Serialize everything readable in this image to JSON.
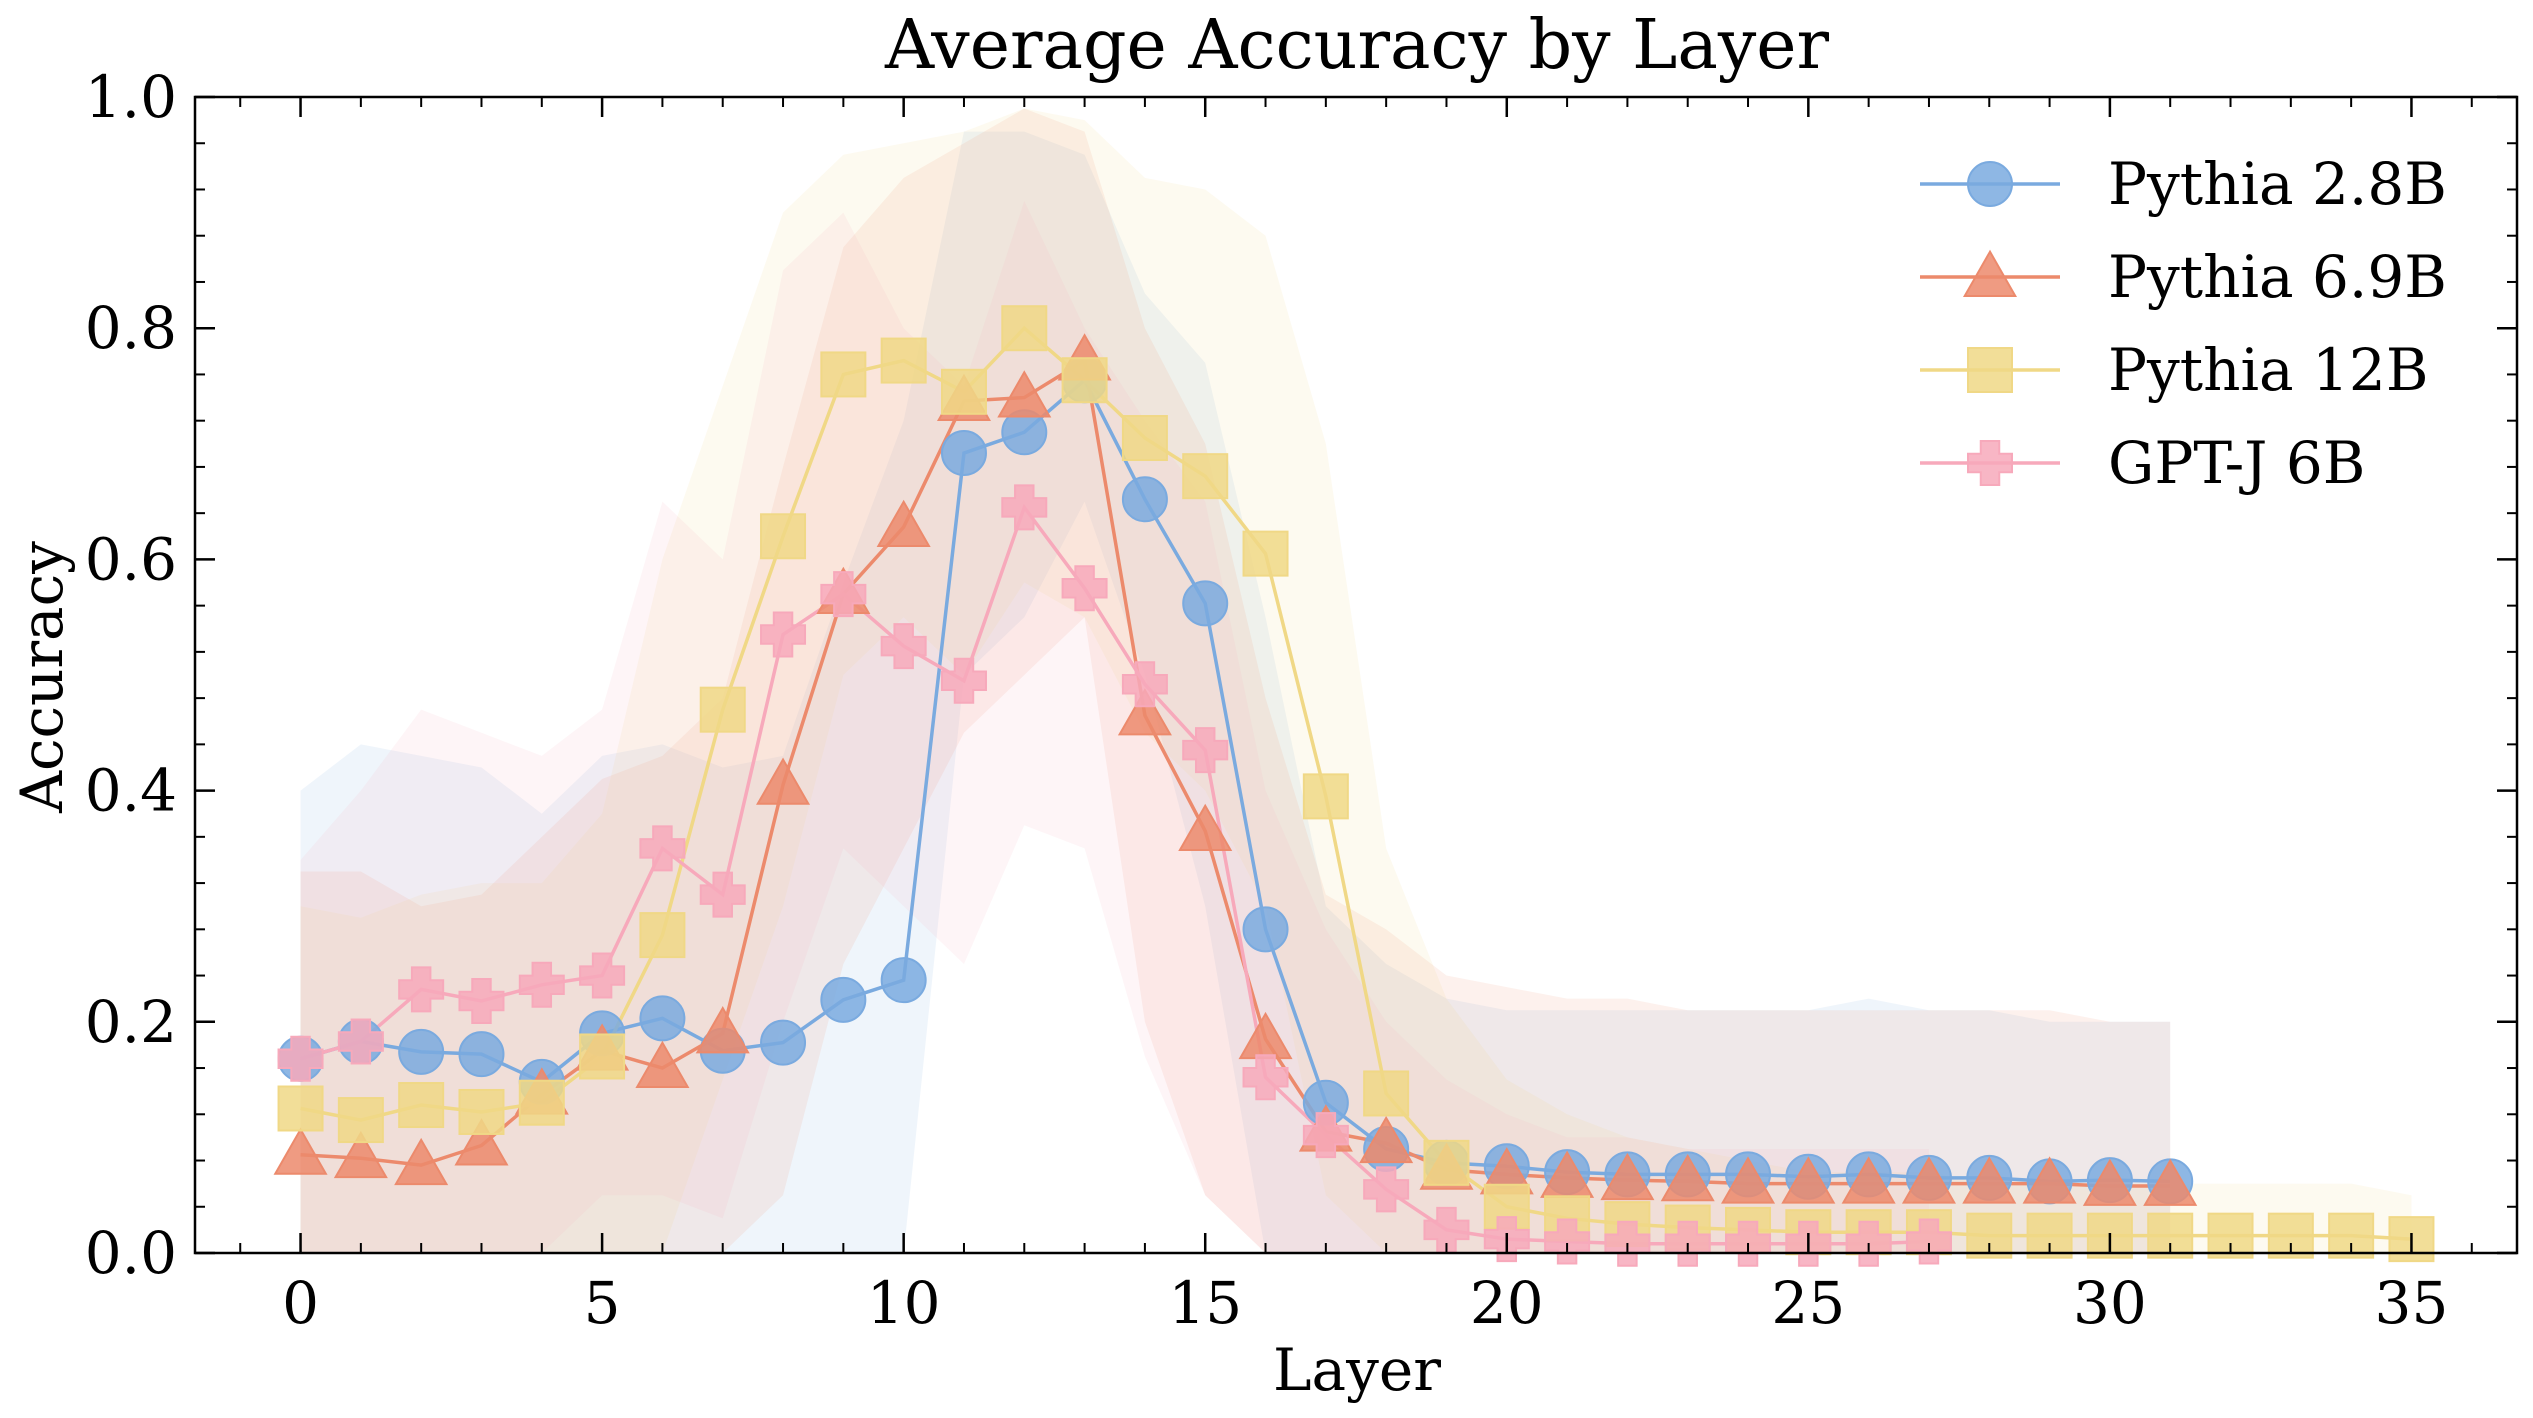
{
  "chart_data": {
    "type": "line",
    "title": "Average Accuracy by Layer",
    "xlabel": "Layer",
    "ylabel": "Accuracy",
    "xlim": [
      -1.75,
      36.75
    ],
    "ylim": [
      0.0,
      1.0
    ],
    "xticks": [
      0,
      5,
      10,
      15,
      20,
      25,
      30,
      35
    ],
    "yticks": [
      0.0,
      0.2,
      0.4,
      0.6,
      0.8,
      1.0
    ],
    "xtick_labels": [
      "0",
      "5",
      "10",
      "15",
      "20",
      "25",
      "30",
      "35"
    ],
    "ytick_labels": [
      "0.0",
      "0.2",
      "0.4",
      "0.6",
      "0.8",
      "1.0"
    ],
    "grid": false,
    "legend_position": "top-right",
    "series": [
      {
        "name": "Pythia 2.8B",
        "color": "#7aaadf",
        "marker": "circle",
        "x": [
          0,
          1,
          2,
          3,
          4,
          5,
          6,
          7,
          8,
          9,
          10,
          11,
          12,
          13,
          14,
          15,
          16,
          17,
          18,
          19,
          20,
          21,
          22,
          23,
          24,
          25,
          26,
          27,
          28,
          29,
          30,
          31
        ],
        "values": [
          0.168,
          0.183,
          0.174,
          0.172,
          0.148,
          0.19,
          0.203,
          0.175,
          0.182,
          0.219,
          0.236,
          0.692,
          0.71,
          0.755,
          0.652,
          0.562,
          0.28,
          0.13,
          0.09,
          0.078,
          0.075,
          0.07,
          0.068,
          0.068,
          0.068,
          0.066,
          0.068,
          0.065,
          0.065,
          0.062,
          0.063,
          0.062
        ],
        "lower": [
          0.0,
          0.0,
          0.0,
          0.0,
          0.0,
          0.0,
          0.0,
          0.0,
          0.0,
          0.0,
          0.0,
          0.5,
          0.55,
          0.65,
          0.5,
          0.3,
          0.0,
          0.0,
          0.0,
          0.0,
          0.0,
          0.0,
          0.0,
          0.0,
          0.0,
          0.0,
          0.0,
          0.0,
          0.0,
          0.0,
          0.0,
          0.0
        ],
        "upper": [
          0.4,
          0.44,
          0.43,
          0.42,
          0.38,
          0.43,
          0.44,
          0.42,
          0.43,
          0.58,
          0.72,
          0.97,
          0.97,
          0.95,
          0.83,
          0.77,
          0.55,
          0.3,
          0.25,
          0.22,
          0.21,
          0.21,
          0.21,
          0.21,
          0.21,
          0.21,
          0.22,
          0.21,
          0.21,
          0.2,
          0.2,
          0.2
        ]
      },
      {
        "name": "Pythia 6.9B",
        "color": "#ec8a6c",
        "marker": "triangle",
        "x": [
          0,
          1,
          2,
          3,
          4,
          5,
          6,
          7,
          8,
          9,
          10,
          11,
          12,
          13,
          14,
          15,
          16,
          17,
          18,
          19,
          20,
          21,
          22,
          23,
          24,
          25,
          26,
          27,
          28,
          29,
          30,
          31
        ],
        "values": [
          0.085,
          0.082,
          0.076,
          0.093,
          0.137,
          0.175,
          0.16,
          0.19,
          0.405,
          0.57,
          0.628,
          0.737,
          0.74,
          0.772,
          0.465,
          0.365,
          0.185,
          0.105,
          0.095,
          0.072,
          0.068,
          0.065,
          0.063,
          0.062,
          0.06,
          0.06,
          0.06,
          0.06,
          0.06,
          0.06,
          0.058,
          0.058
        ],
        "lower": [
          0.0,
          0.0,
          0.0,
          0.0,
          0.0,
          0.0,
          0.0,
          0.0,
          0.05,
          0.25,
          0.35,
          0.45,
          0.5,
          0.55,
          0.2,
          0.05,
          0.0,
          0.0,
          0.0,
          0.0,
          0.0,
          0.0,
          0.0,
          0.0,
          0.0,
          0.0,
          0.0,
          0.0,
          0.0,
          0.0,
          0.0,
          0.0
        ],
        "upper": [
          0.33,
          0.33,
          0.3,
          0.31,
          0.36,
          0.41,
          0.43,
          0.48,
          0.68,
          0.87,
          0.93,
          0.96,
          0.99,
          0.97,
          0.8,
          0.7,
          0.48,
          0.31,
          0.28,
          0.24,
          0.23,
          0.22,
          0.22,
          0.21,
          0.21,
          0.21,
          0.21,
          0.21,
          0.21,
          0.21,
          0.2,
          0.2
        ]
      },
      {
        "name": "Pythia 12B",
        "color": "#f0d886",
        "marker": "square",
        "x": [
          0,
          1,
          2,
          3,
          4,
          5,
          6,
          7,
          8,
          9,
          10,
          11,
          12,
          13,
          14,
          15,
          16,
          17,
          18,
          19,
          20,
          21,
          22,
          23,
          24,
          25,
          26,
          27,
          28,
          29,
          30,
          31,
          32,
          33,
          34,
          35
        ],
        "values": [
          0.125,
          0.115,
          0.128,
          0.122,
          0.13,
          0.17,
          0.275,
          0.47,
          0.62,
          0.76,
          0.772,
          0.745,
          0.8,
          0.755,
          0.705,
          0.672,
          0.605,
          0.395,
          0.138,
          0.078,
          0.04,
          0.03,
          0.025,
          0.022,
          0.02,
          0.018,
          0.018,
          0.018,
          0.015,
          0.015,
          0.015,
          0.015,
          0.015,
          0.015,
          0.015,
          0.012
        ],
        "lower": [
          0.0,
          0.0,
          0.0,
          0.0,
          0.0,
          0.0,
          0.0,
          0.15,
          0.3,
          0.5,
          0.55,
          0.5,
          0.58,
          0.55,
          0.45,
          0.4,
          0.3,
          0.05,
          0.0,
          0.0,
          0.0,
          0.0,
          0.0,
          0.0,
          0.0,
          0.0,
          0.0,
          0.0,
          0.0,
          0.0,
          0.0,
          0.0,
          0.0,
          0.0,
          0.0,
          0.0
        ],
        "upper": [
          0.3,
          0.29,
          0.31,
          0.32,
          0.32,
          0.38,
          0.6,
          0.75,
          0.9,
          0.95,
          0.96,
          0.97,
          0.99,
          0.98,
          0.93,
          0.92,
          0.88,
          0.7,
          0.35,
          0.22,
          0.15,
          0.12,
          0.1,
          0.09,
          0.08,
          0.07,
          0.07,
          0.07,
          0.06,
          0.06,
          0.06,
          0.06,
          0.06,
          0.06,
          0.06,
          0.05
        ]
      },
      {
        "name": "GPT-J 6B",
        "color": "#f7a9bb",
        "marker": "plus",
        "x": [
          0,
          1,
          2,
          3,
          4,
          5,
          6,
          7,
          8,
          9,
          10,
          11,
          12,
          13,
          14,
          15,
          16,
          17,
          18,
          19,
          20,
          21,
          22,
          23,
          24,
          25,
          26,
          27
        ],
        "values": [
          0.168,
          0.183,
          0.228,
          0.218,
          0.232,
          0.24,
          0.35,
          0.31,
          0.535,
          0.57,
          0.525,
          0.495,
          0.645,
          0.575,
          0.492,
          0.435,
          0.152,
          0.102,
          0.055,
          0.02,
          0.012,
          0.01,
          0.008,
          0.008,
          0.008,
          0.008,
          0.008,
          0.01
        ],
        "lower": [
          0.0,
          0.0,
          0.0,
          0.0,
          0.0,
          0.05,
          0.05,
          0.03,
          0.2,
          0.35,
          0.3,
          0.25,
          0.37,
          0.35,
          0.17,
          0.05,
          0.0,
          0.0,
          0.0,
          0.0,
          0.0,
          0.0,
          0.0,
          0.0,
          0.0,
          0.0,
          0.0,
          0.0
        ],
        "upper": [
          0.34,
          0.4,
          0.47,
          0.45,
          0.43,
          0.47,
          0.65,
          0.6,
          0.85,
          0.9,
          0.8,
          0.75,
          0.91,
          0.8,
          0.72,
          0.65,
          0.4,
          0.28,
          0.2,
          0.15,
          0.12,
          0.1,
          0.1,
          0.09,
          0.09,
          0.09,
          0.09,
          0.09
        ]
      }
    ]
  }
}
